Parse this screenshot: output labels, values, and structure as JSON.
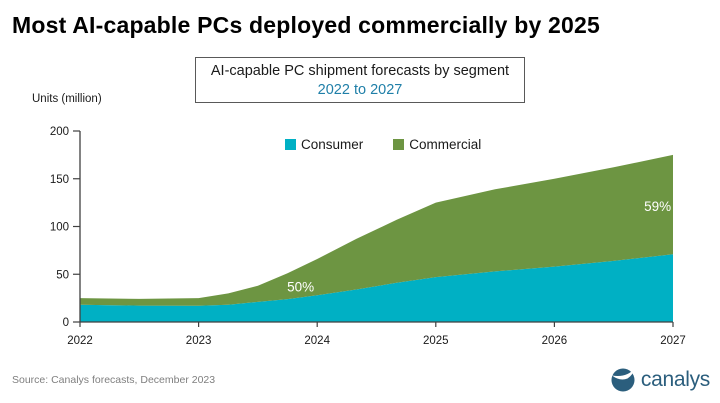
{
  "header": {
    "title": "Most AI-capable PCs deployed commercially by 2025"
  },
  "subtitle_box": {
    "line1": "AI-capable PC shipment forecasts by segment",
    "line2": "2022 to 2027",
    "line2_color": "#1f7fa8"
  },
  "axis_label": "Units (million)",
  "legend": [
    {
      "label": "Consumer",
      "color": "#00b0c4"
    },
    {
      "label": "Commercial",
      "color": "#6d9542"
    }
  ],
  "chart_data": {
    "type": "area",
    "stacked": true,
    "title": "AI-capable PC shipment forecasts by segment",
    "subtitle": "2022 to 2027",
    "categories": [
      2022,
      2023,
      2024,
      2025,
      2026,
      2027
    ],
    "series": [
      {
        "name": "Consumer",
        "color": "#00b0c4",
        "values": [
          18,
          17,
          28,
          47,
          58,
          71
        ]
      },
      {
        "name": "Commercial",
        "color": "#6d9542",
        "values": [
          7,
          8,
          38,
          78,
          92,
          104
        ]
      }
    ],
    "totals": [
      25,
      25,
      66,
      125,
      150,
      175
    ],
    "ylabel": "Units (million)",
    "xlabel": "",
    "ylim": [
      0,
      200
    ],
    "y_ticks": [
      0,
      50,
      100,
      150,
      200
    ],
    "grid": false,
    "legend_position": "top-center",
    "annotations": [
      {
        "text": "50%",
        "x": 2023.86,
        "y": 32,
        "color": "#ffffff"
      },
      {
        "text": "59%",
        "x": 2026.87,
        "y": 116,
        "color": "#ffffff"
      }
    ],
    "render_points": {
      "x": [
        2022,
        2022.5,
        2023,
        2023.25,
        2023.5,
        2023.75,
        2024,
        2024.33,
        2024.67,
        2025,
        2025.5,
        2026,
        2026.5,
        2027
      ],
      "consumer": [
        18,
        17.2,
        17,
        18,
        21,
        24,
        28,
        34,
        41,
        47,
        53,
        58,
        64,
        71
      ],
      "total": [
        25,
        24.2,
        25,
        30,
        38,
        51,
        66,
        87,
        107,
        125,
        139,
        150,
        162,
        175
      ]
    },
    "axis_color": "#404040",
    "tick_label_color": "#1a1a1a"
  },
  "footer": {
    "source": "Source: Canalys forecasts, December 2023",
    "logo_text": "canalys",
    "logo_color": "#2b5e7d"
  }
}
